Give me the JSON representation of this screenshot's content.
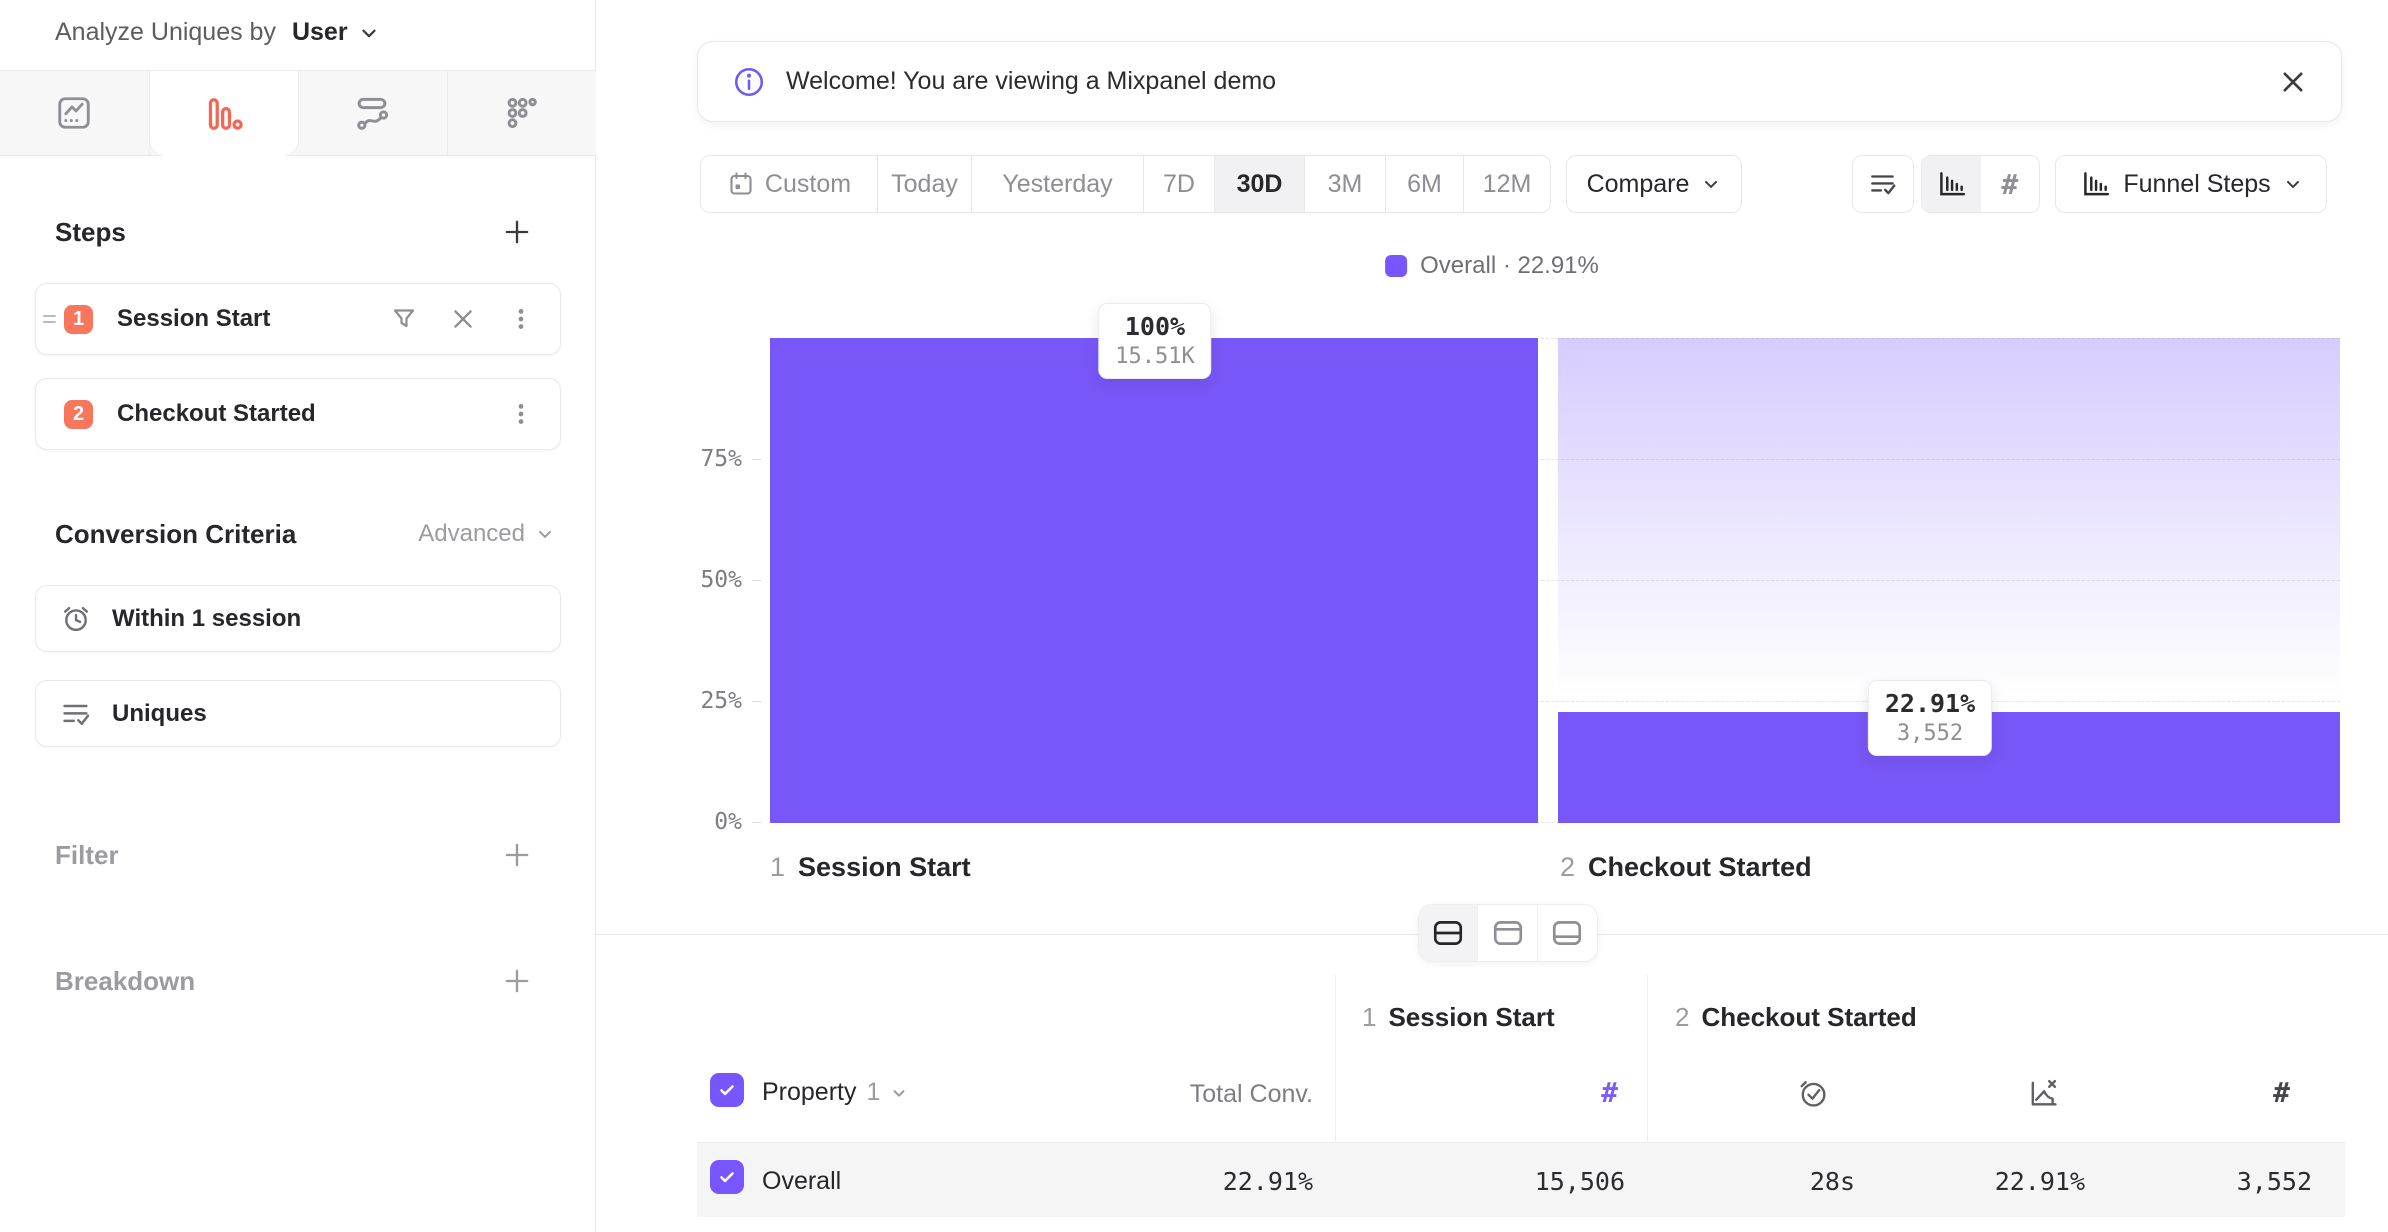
{
  "sidebar": {
    "analyze_label": "Analyze Uniques by",
    "analyze_value": "User",
    "tabs": [
      {
        "icon": "insights-icon",
        "active": false
      },
      {
        "icon": "funnels-icon",
        "active": true
      },
      {
        "icon": "flows-icon",
        "active": false
      },
      {
        "icon": "retention-icon",
        "active": false
      }
    ],
    "steps": {
      "title": "Steps",
      "items": [
        {
          "num": "1",
          "label": "Session Start"
        },
        {
          "num": "2",
          "label": "Checkout Started"
        }
      ]
    },
    "criteria": {
      "title": "Conversion Criteria",
      "advanced": "Advanced",
      "items": [
        {
          "icon": "alarm-clock-icon",
          "label": "Within 1 session"
        },
        {
          "icon": "list-check-icon",
          "label": "Uniques"
        }
      ]
    },
    "filter_label": "Filter",
    "breakdown_label": "Breakdown"
  },
  "banner": {
    "text": "Welcome! You are viewing a Mixpanel demo"
  },
  "toolbar": {
    "ranges": [
      "Custom",
      "Today",
      "Yesterday",
      "7D",
      "30D",
      "3M",
      "6M",
      "12M"
    ],
    "active_range": "30D",
    "compare": "Compare",
    "view_funnel_steps": "Funnel Steps"
  },
  "glyphs": {
    "hash": "#"
  },
  "legend": {
    "text": "Overall · 22.91%",
    "color": "#7856ff"
  },
  "chart_data": {
    "type": "bar",
    "subtype": "funnel",
    "title": "",
    "categories": [
      "1 Session Start",
      "2 Checkout Started"
    ],
    "step_nums": [
      "1",
      "2"
    ],
    "step_names": [
      "Session Start",
      "Checkout Started"
    ],
    "series": [
      {
        "name": "Overall",
        "values": [
          100,
          22.91
        ],
        "counts": [
          15506,
          3552
        ]
      }
    ],
    "value_labels": [
      [
        "100%",
        "15.51K"
      ],
      [
        "22.91%",
        "3,552"
      ]
    ],
    "overall_conversion": "22.91%",
    "ylim": [
      0,
      100
    ],
    "y_tick_labels": [
      "75%",
      "50%",
      "25%",
      "0%"
    ],
    "y_tick_pcts": [
      75,
      50,
      25,
      0
    ],
    "grid": "dashed-horizontal",
    "legend_position": "top-center",
    "bar_color": "#7857f8"
  },
  "table": {
    "groups": [
      {
        "index": "1",
        "label": "Session Start"
      },
      {
        "index": "2",
        "label": "Checkout Started"
      }
    ],
    "property_label": "Property",
    "property_num": "1",
    "total_conv_label": "Total Conv.",
    "rows": [
      {
        "name": "Overall",
        "total_conv": "22.91%",
        "step1_uniques": "15,506",
        "step2_time": "28s",
        "step2_rate": "22.91%",
        "step2_uniques": "3,552"
      }
    ]
  },
  "colors": {
    "purple": "#7856ff",
    "coral": "#f8765b"
  }
}
